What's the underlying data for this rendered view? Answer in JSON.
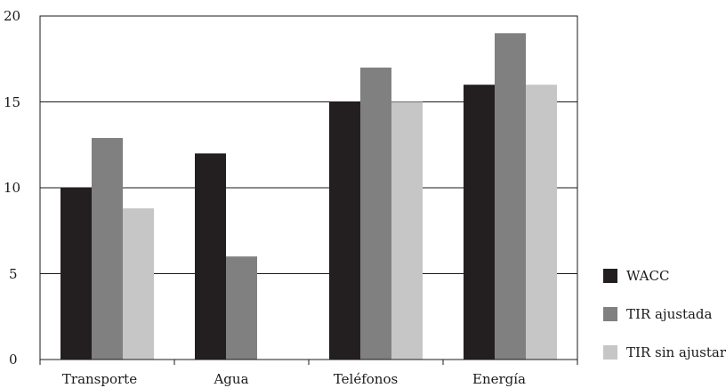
{
  "chart_data": {
    "type": "bar",
    "categories": [
      "Transporte",
      "Agua",
      "Teléfonos",
      "Energía"
    ],
    "series": [
      {
        "name": "WACC",
        "values": [
          10,
          12,
          15,
          16
        ],
        "color": "#231f20"
      },
      {
        "name": "TIR ajustada",
        "values": [
          12.9,
          6,
          17,
          19
        ],
        "color": "#808080"
      },
      {
        "name": "TIR sin ajustar",
        "values": [
          8.8,
          null,
          15,
          16
        ],
        "color": "#c6c6c6"
      }
    ],
    "title": "",
    "xlabel": "",
    "ylabel": "",
    "ylim": [
      0,
      20
    ],
    "yticks": [
      "0",
      "5",
      "10",
      "15",
      "20"
    ],
    "grid": true,
    "legend": "right"
  }
}
